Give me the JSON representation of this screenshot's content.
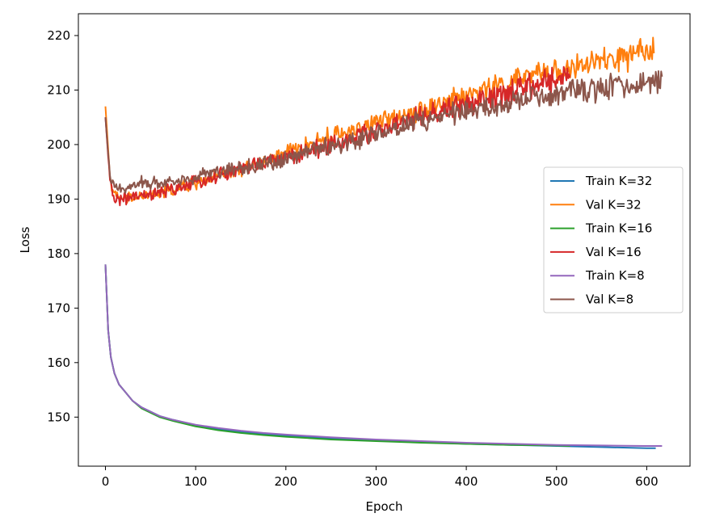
{
  "chart_data": {
    "type": "line",
    "xlabel": "Epoch",
    "ylabel": "Loss",
    "xlim": [
      -30,
      648
    ],
    "ylim": [
      141,
      224
    ],
    "x_ticks": [
      0,
      100,
      200,
      300,
      400,
      500,
      600
    ],
    "y_ticks": [
      150,
      160,
      170,
      180,
      190,
      200,
      210,
      220
    ],
    "grid": false,
    "legend_position": "center-right",
    "series": [
      {
        "name": "Train K=32",
        "color": "#1f77b4",
        "points": [
          [
            0,
            178
          ],
          [
            3,
            166
          ],
          [
            6,
            161
          ],
          [
            10,
            158
          ],
          [
            15,
            156
          ],
          [
            20,
            155
          ],
          [
            30,
            153
          ],
          [
            40,
            151.8
          ],
          [
            50,
            151
          ],
          [
            60,
            150.2
          ],
          [
            75,
            149.5
          ],
          [
            100,
            148.5
          ],
          [
            125,
            147.8
          ],
          [
            150,
            147.3
          ],
          [
            175,
            146.9
          ],
          [
            200,
            146.6
          ],
          [
            250,
            146.1
          ],
          [
            300,
            145.7
          ],
          [
            350,
            145.4
          ],
          [
            400,
            145.1
          ],
          [
            450,
            144.9
          ],
          [
            500,
            144.7
          ],
          [
            550,
            144.5
          ],
          [
            600,
            144.3
          ],
          [
            610,
            144.3
          ]
        ]
      },
      {
        "name": "Val K=32",
        "color": "#ff7f0e",
        "points": [
          [
            0,
            207
          ],
          [
            5,
            194
          ],
          [
            10,
            190.5
          ],
          [
            20,
            190
          ],
          [
            40,
            190.5
          ],
          [
            60,
            191
          ],
          [
            80,
            192
          ],
          [
            100,
            193
          ],
          [
            120,
            194
          ],
          [
            140,
            195
          ],
          [
            160,
            196
          ],
          [
            180,
            197
          ],
          [
            200,
            198.5
          ],
          [
            220,
            199.5
          ],
          [
            240,
            201
          ],
          [
            260,
            202
          ],
          [
            280,
            203
          ],
          [
            300,
            204
          ],
          [
            320,
            205
          ],
          [
            340,
            206
          ],
          [
            360,
            207
          ],
          [
            380,
            208
          ],
          [
            400,
            209
          ],
          [
            420,
            210
          ],
          [
            440,
            211
          ],
          [
            460,
            212
          ],
          [
            480,
            213
          ],
          [
            500,
            213.5
          ],
          [
            520,
            214
          ],
          [
            540,
            215
          ],
          [
            560,
            215.5
          ],
          [
            580,
            216
          ],
          [
            600,
            217
          ],
          [
            608,
            218
          ]
        ]
      },
      {
        "name": "Train K=16",
        "color": "#2ca02c",
        "points": [
          [
            0,
            178
          ],
          [
            3,
            166
          ],
          [
            6,
            161
          ],
          [
            10,
            158
          ],
          [
            15,
            156
          ],
          [
            20,
            155
          ],
          [
            30,
            153
          ],
          [
            40,
            151.6
          ],
          [
            50,
            150.8
          ],
          [
            60,
            150
          ],
          [
            75,
            149.3
          ],
          [
            100,
            148.3
          ],
          [
            125,
            147.6
          ],
          [
            150,
            147.1
          ],
          [
            175,
            146.7
          ],
          [
            200,
            146.4
          ],
          [
            250,
            145.9
          ],
          [
            300,
            145.6
          ],
          [
            350,
            145.3
          ],
          [
            400,
            145.1
          ],
          [
            450,
            144.9
          ],
          [
            500,
            144.8
          ],
          [
            515,
            144.7
          ]
        ]
      },
      {
        "name": "Val K=16",
        "color": "#d62728",
        "points": [
          [
            0,
            205
          ],
          [
            5,
            193
          ],
          [
            10,
            190
          ],
          [
            20,
            190
          ],
          [
            40,
            190.5
          ],
          [
            60,
            191
          ],
          [
            80,
            192
          ],
          [
            100,
            193
          ],
          [
            120,
            194
          ],
          [
            140,
            195
          ],
          [
            160,
            196
          ],
          [
            180,
            197
          ],
          [
            200,
            197.5
          ],
          [
            220,
            198.5
          ],
          [
            240,
            199.5
          ],
          [
            260,
            200.5
          ],
          [
            280,
            201.5
          ],
          [
            300,
            202.5
          ],
          [
            320,
            203.5
          ],
          [
            340,
            204.5
          ],
          [
            360,
            205.5
          ],
          [
            380,
            206.5
          ],
          [
            400,
            207.5
          ],
          [
            420,
            208
          ],
          [
            440,
            209
          ],
          [
            460,
            210
          ],
          [
            480,
            211
          ],
          [
            500,
            212
          ],
          [
            515,
            213
          ]
        ]
      },
      {
        "name": "Train K=8",
        "color": "#9467bd",
        "points": [
          [
            0,
            178
          ],
          [
            3,
            166
          ],
          [
            6,
            161
          ],
          [
            10,
            158
          ],
          [
            15,
            156
          ],
          [
            20,
            155
          ],
          [
            30,
            153
          ],
          [
            40,
            151.8
          ],
          [
            50,
            151
          ],
          [
            60,
            150.2
          ],
          [
            75,
            149.5
          ],
          [
            100,
            148.6
          ],
          [
            125,
            148
          ],
          [
            150,
            147.5
          ],
          [
            175,
            147.1
          ],
          [
            200,
            146.8
          ],
          [
            250,
            146.3
          ],
          [
            300,
            145.9
          ],
          [
            350,
            145.6
          ],
          [
            400,
            145.3
          ],
          [
            450,
            145.1
          ],
          [
            500,
            144.9
          ],
          [
            550,
            144.8
          ],
          [
            600,
            144.7
          ],
          [
            617,
            144.7
          ]
        ]
      },
      {
        "name": "Val K=8",
        "color": "#8c564b",
        "points": [
          [
            0,
            205
          ],
          [
            5,
            194
          ],
          [
            10,
            192
          ],
          [
            20,
            192
          ],
          [
            40,
            193
          ],
          [
            60,
            193
          ],
          [
            80,
            193.5
          ],
          [
            100,
            194
          ],
          [
            120,
            195
          ],
          [
            140,
            195.5
          ],
          [
            160,
            196
          ],
          [
            180,
            196.5
          ],
          [
            200,
            197.5
          ],
          [
            220,
            198.5
          ],
          [
            240,
            199.5
          ],
          [
            260,
            200
          ],
          [
            280,
            201
          ],
          [
            300,
            202
          ],
          [
            320,
            203
          ],
          [
            340,
            204
          ],
          [
            360,
            204.5
          ],
          [
            380,
            205.5
          ],
          [
            400,
            206
          ],
          [
            420,
            206.5
          ],
          [
            440,
            207
          ],
          [
            460,
            208
          ],
          [
            480,
            208.5
          ],
          [
            500,
            209
          ],
          [
            520,
            209.5
          ],
          [
            540,
            210
          ],
          [
            560,
            210.5
          ],
          [
            580,
            211
          ],
          [
            600,
            211.5
          ],
          [
            617,
            212
          ]
        ]
      }
    ]
  }
}
